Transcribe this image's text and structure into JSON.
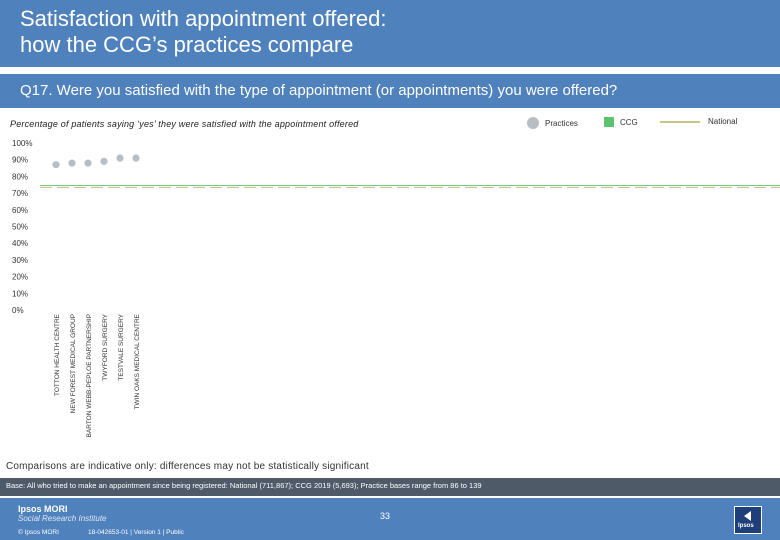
{
  "header": {
    "title_line1": "Satisfaction with appointment offered:",
    "title_line2": "how the CCG’s practices compare"
  },
  "question": "Q17. Were you satisfied with the type of appointment (or appointments) you were offered?",
  "subtitle": "Percentage of patients saying ‘yes’ they were satisfied with the appointment offered",
  "legend": {
    "practices": "Practices",
    "ccg": "CCG",
    "national": "National"
  },
  "colors": {
    "header": "#4f81bd",
    "practices_marker": "#b9bec4",
    "ccg": "#5cc26f",
    "national": "#c9c48a"
  },
  "chart_data": {
    "type": "scatter",
    "categories": [
      "TOTTON HEALTH CENTRE",
      "NEW FOREST MEDICAL GROUP",
      "BARTON WEBB-PEPLOE PARTNERSHIP",
      "TWYFORD SURGERY",
      "TESTVALE SURGERY",
      "TWIN OAKS MEDICAL CENTRE"
    ],
    "series": [
      {
        "name": "Practices",
        "values": [
          87,
          88,
          88,
          89,
          91,
          91
        ]
      }
    ],
    "reference_lines": {
      "CCG": 74,
      "National": 74
    },
    "y_ticks": [
      "0%",
      "10%",
      "20%",
      "30%",
      "40%",
      "50%",
      "60%",
      "70%",
      "80%",
      "90%",
      "100%"
    ],
    "ylim": [
      0,
      100
    ],
    "grid": false,
    "legend_position": "top-right"
  },
  "comparisons_note": "Comparisons are indicative only: differences may not be statistically significant",
  "base_note": "Base: All who tried to make an appointment since being registered: National (711,867); CCG 2019 (5,693); Practice bases range from 86 to 139",
  "footer": {
    "brand_line1": "Ipsos MORI",
    "brand_line2": "Social Research Institute",
    "page_number": "33",
    "copyright": "© Ipsos MORI",
    "reference": "18-042653-01 | Version 1 | Public",
    "logo_text": "Ipsos"
  }
}
